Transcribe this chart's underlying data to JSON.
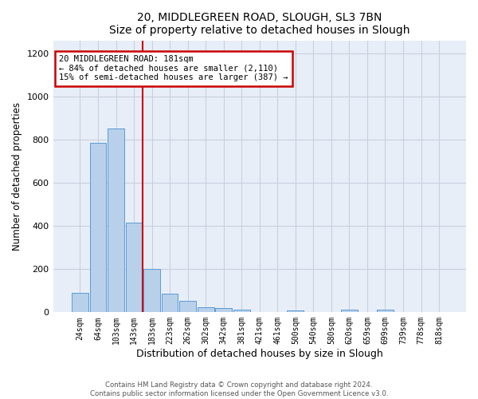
{
  "title1": "20, MIDDLEGREEN ROAD, SLOUGH, SL3 7BN",
  "title2": "Size of property relative to detached houses in Slough",
  "xlabel": "Distribution of detached houses by size in Slough",
  "ylabel": "Number of detached properties",
  "footnote": "Contains HM Land Registry data © Crown copyright and database right 2024.\nContains public sector information licensed under the Open Government Licence v3.0.",
  "bar_labels": [
    "24sqm",
    "64sqm",
    "103sqm",
    "143sqm",
    "183sqm",
    "223sqm",
    "262sqm",
    "302sqm",
    "342sqm",
    "381sqm",
    "421sqm",
    "461sqm",
    "500sqm",
    "540sqm",
    "580sqm",
    "620sqm",
    "659sqm",
    "699sqm",
    "739sqm",
    "778sqm",
    "818sqm"
  ],
  "bar_values": [
    90,
    785,
    850,
    415,
    200,
    85,
    52,
    22,
    18,
    12,
    0,
    0,
    10,
    0,
    0,
    12,
    0,
    12,
    0,
    0,
    0
  ],
  "bar_color": "#b8d0ea",
  "bar_edge_color": "#5b9bd5",
  "grid_color": "#c8d0de",
  "vline_index": 3.5,
  "annotation_text_line1": "20 MIDDLEGREEN ROAD: 181sqm",
  "annotation_text_line2": "← 84% of detached houses are smaller (2,110)",
  "annotation_text_line3": "15% of semi-detached houses are larger (387) →",
  "annotation_box_color": "#ffffff",
  "annotation_box_edge": "#cc0000",
  "vline_color": "#cc0000",
  "ylim": [
    0,
    1260
  ],
  "yticks": [
    0,
    200,
    400,
    600,
    800,
    1000,
    1200
  ],
  "bg_color": "#e8eef8"
}
